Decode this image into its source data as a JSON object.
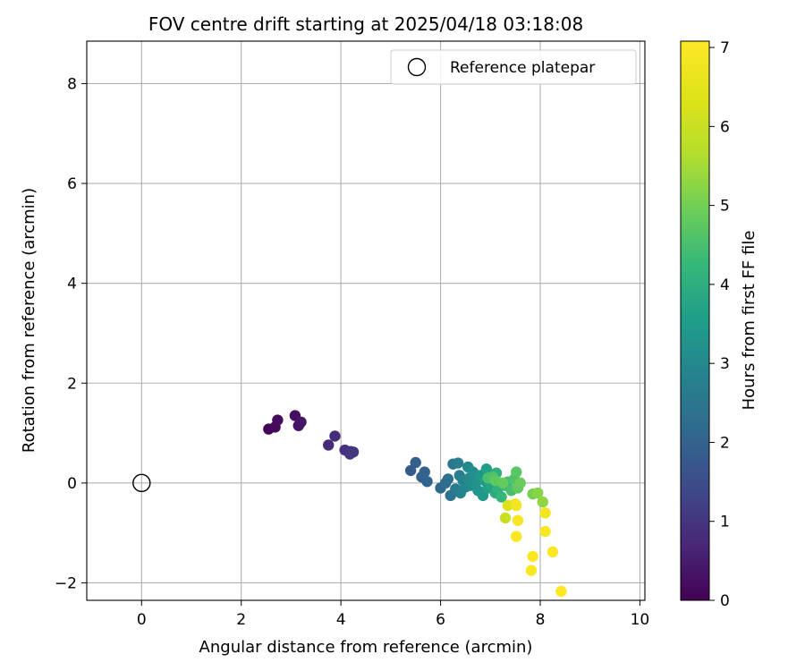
{
  "chart_data": {
    "type": "scatter",
    "title": "FOV centre drift starting at 2025/04/18 03:18:08",
    "xlabel": "Angular distance from reference (arcmin)",
    "ylabel": "Rotation from reference (arcmin)",
    "xlim": [
      -1.1,
      10.1
    ],
    "ylim": [
      -2.35,
      8.85
    ],
    "x_ticks": [
      0,
      2,
      4,
      6,
      8,
      10
    ],
    "y_ticks": [
      -2,
      0,
      2,
      4,
      6,
      8
    ],
    "grid": true,
    "legend_position": "top-right",
    "colormap": "viridis",
    "colorbar": {
      "label": "Hours from first FF file",
      "range": [
        0,
        7.08
      ],
      "ticks": [
        0,
        1,
        2,
        3,
        4,
        5,
        6,
        7
      ]
    },
    "reference": {
      "name": "Reference platepar",
      "x": 0,
      "y": 0
    },
    "series": [
      {
        "points": [
          {
            "x": 2.55,
            "y": 1.08,
            "h": 0.05
          },
          {
            "x": 2.68,
            "y": 1.12,
            "h": 0.12
          },
          {
            "x": 2.73,
            "y": 1.26,
            "h": 0.18
          },
          {
            "x": 3.08,
            "y": 1.35,
            "h": 0.25
          },
          {
            "x": 3.15,
            "y": 1.15,
            "h": 0.3
          },
          {
            "x": 3.2,
            "y": 1.22,
            "h": 0.38
          },
          {
            "x": 3.75,
            "y": 0.76,
            "h": 0.75
          },
          {
            "x": 3.88,
            "y": 0.94,
            "h": 0.82
          },
          {
            "x": 4.08,
            "y": 0.66,
            "h": 0.9
          },
          {
            "x": 4.2,
            "y": 0.63,
            "h": 0.95
          },
          {
            "x": 4.18,
            "y": 0.58,
            "h": 1.0
          },
          {
            "x": 4.25,
            "y": 0.62,
            "h": 1.05
          },
          {
            "x": 5.4,
            "y": 0.25,
            "h": 1.85
          },
          {
            "x": 5.5,
            "y": 0.41,
            "h": 1.9
          },
          {
            "x": 5.62,
            "y": 0.12,
            "h": 1.95
          },
          {
            "x": 5.68,
            "y": 0.22,
            "h": 2.0
          },
          {
            "x": 5.73,
            "y": 0.03,
            "h": 2.05
          },
          {
            "x": 6.0,
            "y": -0.1,
            "h": 2.15
          },
          {
            "x": 6.1,
            "y": 0.0,
            "h": 2.25
          },
          {
            "x": 6.15,
            "y": 0.08,
            "h": 2.3
          },
          {
            "x": 6.2,
            "y": -0.25,
            "h": 2.4
          },
          {
            "x": 6.25,
            "y": 0.38,
            "h": 2.5
          },
          {
            "x": 6.3,
            "y": -0.12,
            "h": 2.6
          },
          {
            "x": 6.35,
            "y": 0.4,
            "h": 2.7
          },
          {
            "x": 6.38,
            "y": 0.15,
            "h": 2.75
          },
          {
            "x": 6.4,
            "y": -0.2,
            "h": 2.8
          },
          {
            "x": 6.45,
            "y": 0.05,
            "h": 2.85
          },
          {
            "x": 6.5,
            "y": -0.08,
            "h": 2.9
          },
          {
            "x": 6.55,
            "y": 0.32,
            "h": 3.0
          },
          {
            "x": 6.58,
            "y": 0.1,
            "h": 3.05
          },
          {
            "x": 6.6,
            "y": -0.05,
            "h": 3.1
          },
          {
            "x": 6.65,
            "y": 0.22,
            "h": 3.15
          },
          {
            "x": 6.7,
            "y": 0.0,
            "h": 3.2
          },
          {
            "x": 6.75,
            "y": -0.15,
            "h": 3.3
          },
          {
            "x": 6.8,
            "y": 0.15,
            "h": 3.35
          },
          {
            "x": 6.85,
            "y": -0.25,
            "h": 3.4
          },
          {
            "x": 6.88,
            "y": 0.05,
            "h": 3.5
          },
          {
            "x": 6.92,
            "y": 0.28,
            "h": 3.55
          },
          {
            "x": 6.95,
            "y": -0.1,
            "h": 3.6
          },
          {
            "x": 7.0,
            "y": 0.18,
            "h": 3.7
          },
          {
            "x": 7.02,
            "y": -0.05,
            "h": 3.75
          },
          {
            "x": 7.05,
            "y": 0.08,
            "h": 3.8
          },
          {
            "x": 7.1,
            "y": -0.2,
            "h": 3.9
          },
          {
            "x": 7.12,
            "y": 0.2,
            "h": 4.0
          },
          {
            "x": 7.15,
            "y": -0.12,
            "h": 4.05
          },
          {
            "x": 7.18,
            "y": 0.0,
            "h": 4.1
          },
          {
            "x": 7.22,
            "y": -0.28,
            "h": 4.2
          },
          {
            "x": 7.3,
            "y": -0.05,
            "h": 4.3
          },
          {
            "x": 7.35,
            "y": 0.02,
            "h": 4.4
          },
          {
            "x": 7.42,
            "y": -0.15,
            "h": 4.5
          },
          {
            "x": 7.48,
            "y": 0.08,
            "h": 4.6
          },
          {
            "x": 7.52,
            "y": 0.22,
            "h": 4.7
          },
          {
            "x": 7.55,
            "y": -0.1,
            "h": 4.8
          },
          {
            "x": 7.6,
            "y": 0.0,
            "h": 4.9
          },
          {
            "x": 6.95,
            "y": 0.1,
            "h": 4.5
          },
          {
            "x": 7.05,
            "y": 0.12,
            "h": 4.6
          },
          {
            "x": 7.1,
            "y": 0.05,
            "h": 4.75
          },
          {
            "x": 7.25,
            "y": 0.0,
            "h": 4.85
          },
          {
            "x": 7.85,
            "y": -0.22,
            "h": 5.05
          },
          {
            "x": 7.95,
            "y": -0.2,
            "h": 5.2
          },
          {
            "x": 8.05,
            "y": -0.38,
            "h": 5.3
          },
          {
            "x": 7.3,
            "y": -0.7,
            "h": 6.0
          },
          {
            "x": 7.35,
            "y": -0.45,
            "h": 6.3
          },
          {
            "x": 7.5,
            "y": -0.42,
            "h": 6.6
          },
          {
            "x": 7.52,
            "y": -0.45,
            "h": 6.9
          },
          {
            "x": 7.55,
            "y": -0.75,
            "h": 6.95
          },
          {
            "x": 7.52,
            "y": -1.07,
            "h": 7.0
          },
          {
            "x": 8.1,
            "y": -0.6,
            "h": 6.85
          },
          {
            "x": 8.1,
            "y": -0.97,
            "h": 6.95
          },
          {
            "x": 7.85,
            "y": -1.47,
            "h": 7.0
          },
          {
            "x": 7.82,
            "y": -1.75,
            "h": 7.02
          },
          {
            "x": 8.25,
            "y": -1.38,
            "h": 7.05
          },
          {
            "x": 8.42,
            "y": -2.17,
            "h": 7.08
          }
        ]
      }
    ]
  }
}
